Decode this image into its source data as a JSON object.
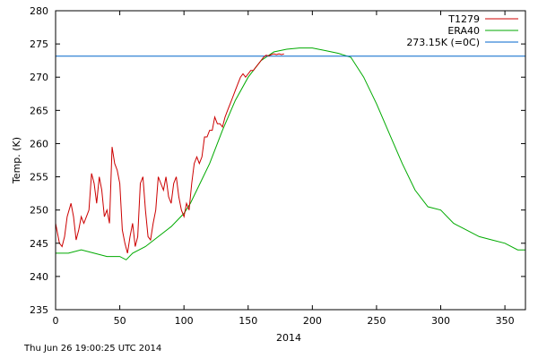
{
  "chart_data": {
    "type": "line",
    "title": "",
    "xlabel": "2014",
    "ylabel": "Temp. (K)",
    "xlim": [
      0,
      366
    ],
    "ylim": [
      235,
      280
    ],
    "xticks": [
      0,
      50,
      100,
      150,
      200,
      250,
      300,
      350
    ],
    "yticks": [
      235,
      240,
      245,
      250,
      255,
      260,
      265,
      270,
      275,
      280
    ],
    "grid": false,
    "legend_position": "top-right",
    "series": [
      {
        "name": "T1279",
        "color": "#cc0000",
        "x": [
          0,
          3,
          5,
          7,
          9,
          12,
          14,
          16,
          18,
          20,
          22,
          24,
          26,
          28,
          30,
          32,
          34,
          36,
          38,
          40,
          42,
          44,
          46,
          48,
          50,
          52,
          54,
          56,
          58,
          60,
          62,
          64,
          66,
          68,
          70,
          72,
          74,
          76,
          78,
          80,
          82,
          84,
          86,
          88,
          90,
          92,
          94,
          96,
          98,
          100,
          102,
          104,
          106,
          108,
          110,
          112,
          114,
          116,
          118,
          120,
          122,
          124,
          126,
          128,
          130,
          132,
          134,
          136,
          138,
          140,
          142,
          144,
          146,
          148,
          150,
          152,
          154,
          156,
          158,
          160,
          162,
          164,
          166,
          168,
          170,
          172,
          174,
          176,
          178
        ],
        "y": [
          248,
          245,
          244.5,
          246,
          249,
          251,
          249,
          245.5,
          247,
          249,
          248,
          249,
          250,
          255.5,
          254,
          251,
          255,
          253,
          249,
          250,
          248,
          259.5,
          257,
          256,
          254,
          247,
          245,
          243.5,
          246,
          248,
          244.5,
          246,
          254,
          255,
          250,
          246,
          245.5,
          248,
          250,
          255,
          254,
          253,
          255,
          252,
          251,
          254,
          255,
          252,
          250,
          249,
          251,
          250,
          254,
          257,
          258,
          257,
          258,
          261,
          261,
          262,
          262,
          264,
          263,
          263,
          262.5,
          264,
          265,
          266,
          267,
          268,
          269,
          270,
          270.5,
          270,
          270.5,
          271,
          271,
          271.5,
          272,
          272.5,
          273,
          273.3,
          273.2,
          273.4,
          273.5,
          273.4,
          273.5,
          273.4,
          273.5
        ]
      },
      {
        "name": "ERA40",
        "color": "#00aa00",
        "x": [
          0,
          10,
          20,
          30,
          40,
          50,
          55,
          60,
          70,
          80,
          90,
          100,
          105,
          110,
          120,
          130,
          140,
          150,
          160,
          170,
          180,
          190,
          200,
          210,
          220,
          230,
          240,
          250,
          260,
          270,
          280,
          290,
          300,
          310,
          320,
          330,
          340,
          350,
          360,
          366
        ],
        "y": [
          243.5,
          243.5,
          244,
          243.5,
          243,
          243,
          242.5,
          243.5,
          244.5,
          246,
          247.5,
          249.5,
          251,
          253,
          257,
          262,
          266.5,
          270,
          272.5,
          273.8,
          274.2,
          274.4,
          274.4,
          274,
          273.6,
          273,
          270,
          266,
          261.5,
          257,
          253,
          250.5,
          250,
          248,
          247,
          246,
          245.5,
          245,
          244,
          244
        ]
      },
      {
        "name": "273.15K (=0C)",
        "color": "#0066cc",
        "x": [
          0,
          366
        ],
        "y": [
          273.15,
          273.15
        ]
      }
    ]
  },
  "footer": {
    "timestamp": "Thu Jun 26 19:00:25 UTC 2014"
  }
}
